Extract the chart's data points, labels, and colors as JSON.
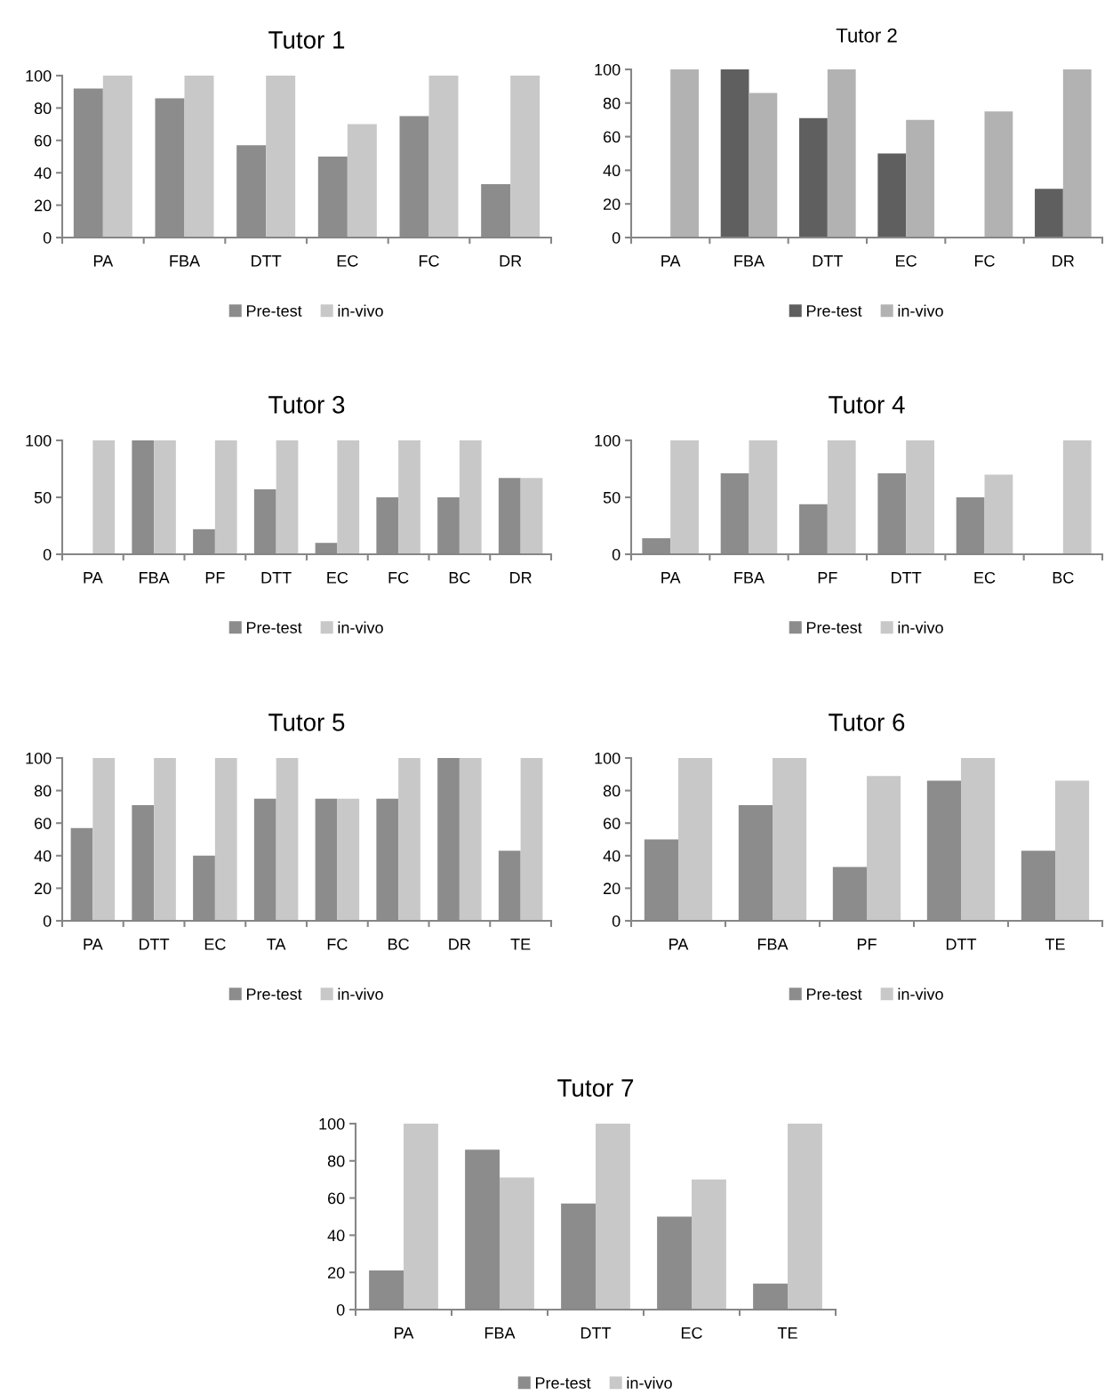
{
  "chart_data": [
    {
      "type": "bar",
      "title": "Tutor 1",
      "categories": [
        "PA",
        "FBA",
        "DTT",
        "EC",
        "FC",
        "DR"
      ],
      "ylim": [
        0,
        100
      ],
      "yticks": [
        0,
        20,
        40,
        60,
        80,
        100
      ],
      "grid": false,
      "legend": "bottom",
      "series": [
        {
          "name": "Pre-test",
          "color": "#8c8c8c",
          "values": [
            92,
            86,
            57,
            50,
            75,
            33
          ]
        },
        {
          "name": "in-vivo",
          "color": "#c8c8c8",
          "values": [
            100,
            100,
            100,
            70,
            100,
            100
          ]
        }
      ]
    },
    {
      "type": "bar",
      "title": "Tutor 2",
      "categories": [
        "PA",
        "FBA",
        "DTT",
        "EC",
        "FC",
        "DR"
      ],
      "ylim": [
        0,
        100
      ],
      "yticks": [
        0,
        20,
        40,
        60,
        80,
        100
      ],
      "grid": false,
      "legend": "bottom",
      "series": [
        {
          "name": "Pre-test",
          "color": "#5f5f5f",
          "values": [
            null,
            100,
            71,
            50,
            null,
            29
          ]
        },
        {
          "name": "in-vivo",
          "color": "#b2b2b2",
          "values": [
            100,
            86,
            100,
            70,
            75,
            100
          ]
        }
      ]
    },
    {
      "type": "bar",
      "title": "Tutor 3",
      "categories": [
        "PA",
        "FBA",
        "PF",
        "DTT",
        "EC",
        "FC",
        "BC",
        "DR"
      ],
      "ylim": [
        0,
        100
      ],
      "yticks": [
        0,
        50,
        100
      ],
      "grid": false,
      "legend": "bottom",
      "series": [
        {
          "name": "Pre-test",
          "color": "#8c8c8c",
          "values": [
            null,
            100,
            22,
            57,
            10,
            50,
            50,
            67
          ]
        },
        {
          "name": "in-vivo",
          "color": "#c8c8c8",
          "values": [
            100,
            100,
            100,
            100,
            100,
            100,
            100,
            67
          ]
        }
      ]
    },
    {
      "type": "bar",
      "title": "Tutor 4",
      "categories": [
        "PA",
        "FBA",
        "PF",
        "DTT",
        "EC",
        "BC"
      ],
      "ylim": [
        0,
        100
      ],
      "yticks": [
        0,
        50,
        100
      ],
      "grid": false,
      "legend": "bottom",
      "series": [
        {
          "name": "Pre-test",
          "color": "#8c8c8c",
          "values": [
            14,
            71,
            44,
            71,
            50,
            null
          ]
        },
        {
          "name": "in-vivo",
          "color": "#c8c8c8",
          "values": [
            100,
            100,
            100,
            100,
            70,
            100
          ]
        }
      ]
    },
    {
      "type": "bar",
      "title": "Tutor 5",
      "categories": [
        "PA",
        "DTT",
        "EC",
        "TA",
        "FC",
        "BC",
        "DR",
        "TE"
      ],
      "ylim": [
        0,
        100
      ],
      "yticks": [
        0,
        20,
        40,
        60,
        80,
        100
      ],
      "grid": false,
      "legend": "bottom",
      "series": [
        {
          "name": "Pre-test",
          "color": "#8c8c8c",
          "values": [
            57,
            71,
            40,
            75,
            75,
            75,
            100,
            43
          ]
        },
        {
          "name": "in-vivo",
          "color": "#c8c8c8",
          "values": [
            100,
            100,
            100,
            100,
            75,
            100,
            100,
            100
          ]
        }
      ]
    },
    {
      "type": "bar",
      "title": "Tutor 6",
      "categories": [
        "PA",
        "FBA",
        "PF",
        "DTT",
        "TE"
      ],
      "ylim": [
        0,
        100
      ],
      "yticks": [
        0,
        20,
        40,
        60,
        80,
        100
      ],
      "grid": false,
      "legend": "bottom",
      "series": [
        {
          "name": "Pre-test",
          "color": "#8c8c8c",
          "values": [
            50,
            71,
            33,
            86,
            43
          ]
        },
        {
          "name": "in-vivo",
          "color": "#c8c8c8",
          "values": [
            100,
            100,
            89,
            100,
            86
          ]
        }
      ]
    },
    {
      "type": "bar",
      "title": "Tutor 7",
      "categories": [
        "PA",
        "FBA",
        "DTT",
        "EC",
        "TE"
      ],
      "ylim": [
        0,
        100
      ],
      "yticks": [
        0,
        20,
        40,
        60,
        80,
        100
      ],
      "grid": false,
      "legend": "bottom",
      "series": [
        {
          "name": "Pre-test",
          "color": "#8c8c8c",
          "values": [
            21,
            86,
            57,
            50,
            14
          ]
        },
        {
          "name": "in-vivo",
          "color": "#c8c8c8",
          "values": [
            100,
            71,
            100,
            70,
            100
          ]
        }
      ]
    }
  ]
}
